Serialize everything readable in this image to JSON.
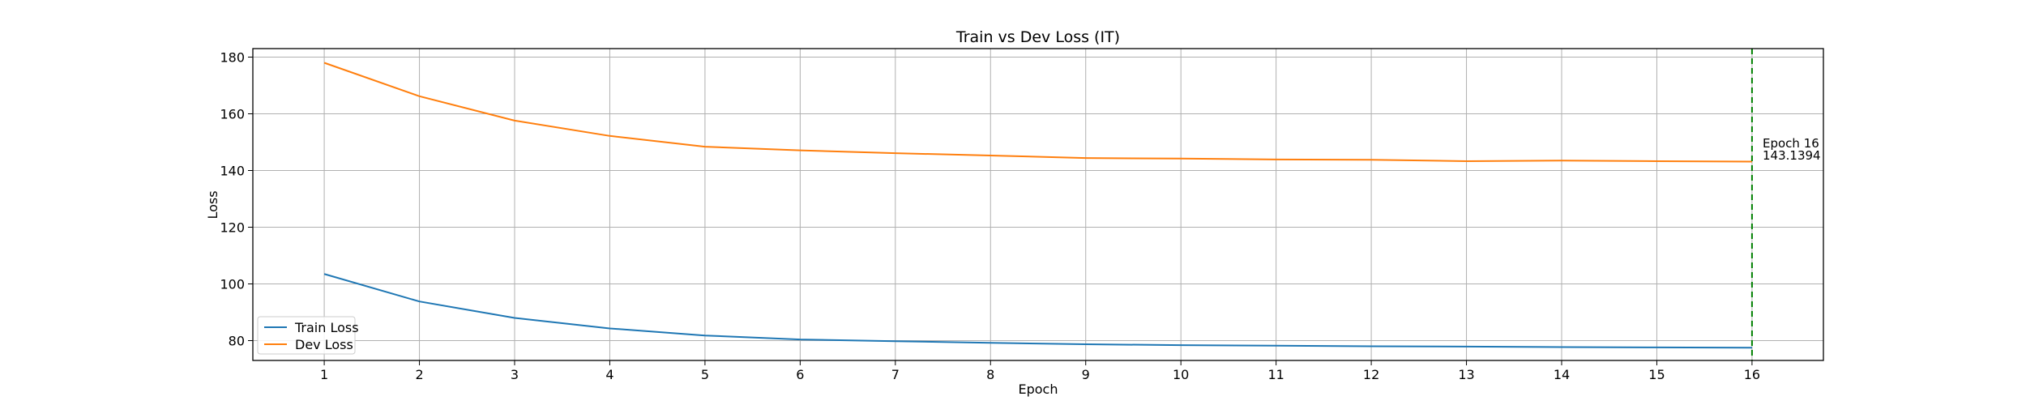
{
  "chart_data": {
    "type": "line",
    "title": "Train vs Dev Loss (IT)",
    "xlabel": "Epoch",
    "ylabel": "Loss",
    "x": [
      1,
      2,
      3,
      4,
      5,
      6,
      7,
      8,
      9,
      10,
      11,
      12,
      13,
      14,
      15,
      16
    ],
    "xlim": [
      0.25,
      16.75
    ],
    "ylim": [
      73,
      183
    ],
    "xticks": [
      1,
      2,
      3,
      4,
      5,
      6,
      7,
      8,
      9,
      10,
      11,
      12,
      13,
      14,
      15,
      16
    ],
    "yticks": [
      80,
      100,
      120,
      140,
      160,
      180
    ],
    "grid": true,
    "legend_position": "bottom-left",
    "series": [
      {
        "name": "Train Loss",
        "color": "#1f77b4",
        "values": [
          103.5,
          93.8,
          88.0,
          84.3,
          81.8,
          80.4,
          79.8,
          79.2,
          78.7,
          78.4,
          78.2,
          78.0,
          77.9,
          77.7,
          77.6,
          77.5
        ]
      },
      {
        "name": "Dev Loss",
        "color": "#ff7f0e",
        "values": [
          178.0,
          166.2,
          157.6,
          152.2,
          148.4,
          147.1,
          146.1,
          145.3,
          144.4,
          144.2,
          143.9,
          143.8,
          143.3,
          143.5,
          143.3,
          143.1394
        ]
      }
    ],
    "marker_line": {
      "x": 16,
      "color": "#008000",
      "style": "dashed"
    },
    "annotation": {
      "line1": "Epoch 16",
      "line2": "143.1394"
    }
  }
}
